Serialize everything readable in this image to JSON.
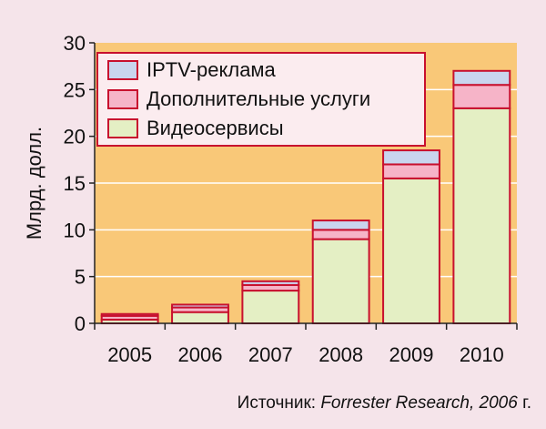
{
  "colors": {
    "page_background": "#f5e4ea",
    "plot_background": "#f9c878",
    "bar_stroke": "#c8102e",
    "legend_background": "#fbecef",
    "gridline": "#ffffff",
    "axis": "#222222"
  },
  "chart_data": {
    "type": "bar",
    "stacked": true,
    "title": "",
    "xlabel": "",
    "ylabel": "Млрд. долл.",
    "ylim": [
      0,
      30
    ],
    "yticks": [
      0,
      5,
      10,
      15,
      20,
      25,
      30
    ],
    "grid": true,
    "legend_position": "top-left",
    "categories": [
      "2005",
      "2006",
      "2007",
      "2008",
      "2009",
      "2010"
    ],
    "series": [
      {
        "name": "Видеосервисы",
        "color": "#e4efc4",
        "values": [
          0.4,
          1.2,
          3.5,
          9.0,
          15.5,
          23.0
        ]
      },
      {
        "name": "Дополнительные услуги",
        "color": "#f6b4c8",
        "values": [
          0.4,
          0.5,
          0.6,
          1.0,
          1.5,
          2.5
        ]
      },
      {
        "name": "IPTV-реклама",
        "color": "#c9d5ee",
        "values": [
          0.2,
          0.3,
          0.4,
          1.0,
          1.5,
          1.5
        ]
      }
    ],
    "legend_order": [
      "IPTV-реклама",
      "Дополнительные услуги",
      "Видеосервисы"
    ]
  },
  "source": {
    "prefix": "Источник: ",
    "name": "Forrester Research, 2006",
    "suffix": " г."
  }
}
